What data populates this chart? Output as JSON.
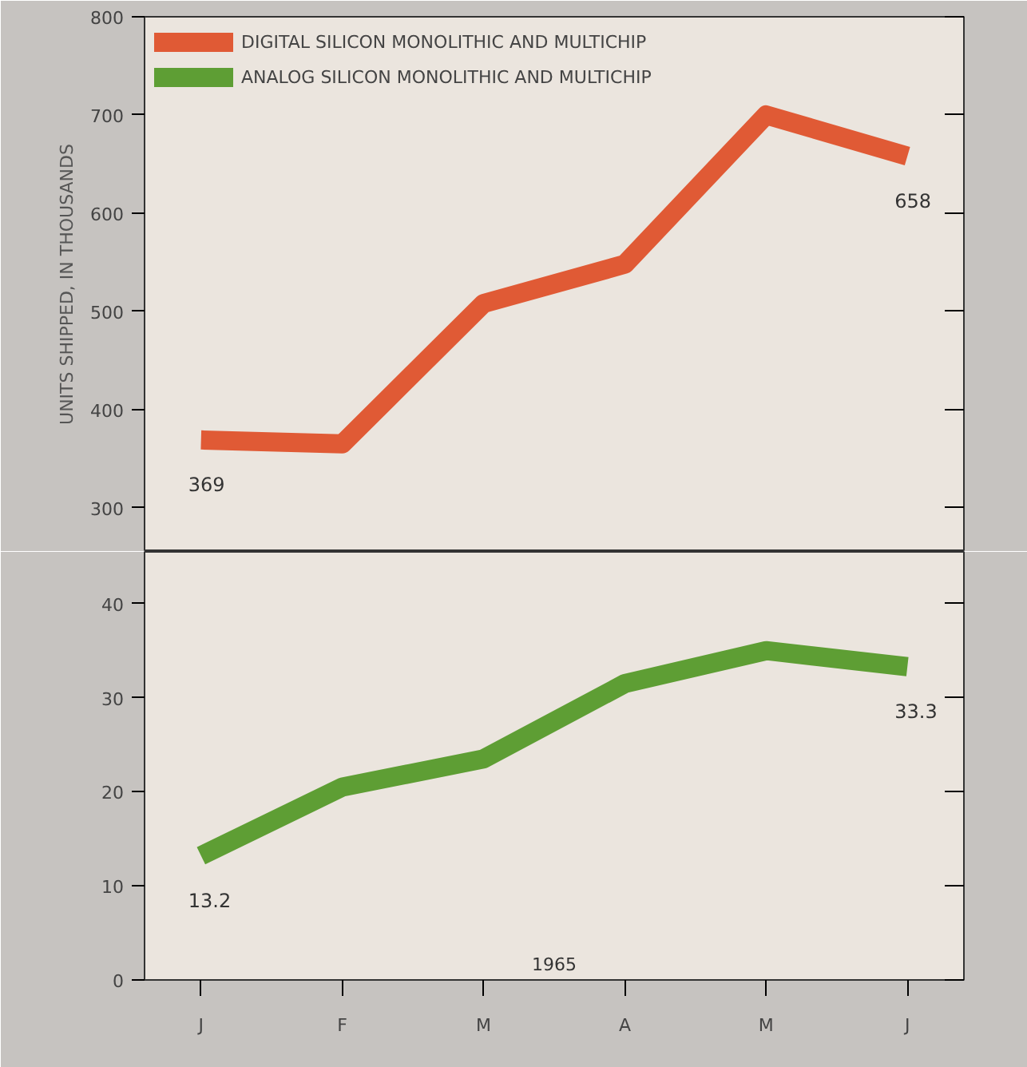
{
  "chart_data": [
    {
      "type": "line",
      "ylabel": "UNITS SHIPPED, IN THOUSANDS",
      "series": [
        {
          "name": "DIGITAL SILICON MONOLITHIC AND MULTICHIP",
          "color": "#e05a35",
          "values": [
            369,
            365,
            508,
            548,
            700,
            658
          ],
          "value_labels": [
            "369",
            null,
            null,
            null,
            null,
            "658"
          ]
        }
      ],
      "ylim": [
        255,
        800
      ],
      "yticks": [
        300,
        400,
        500,
        600,
        700,
        800
      ],
      "grid": false,
      "legend": "top left",
      "tick_labels": "y",
      "marker": "none",
      "line_style": "solid"
    },
    {
      "type": "line",
      "xlabel": "1965",
      "categories": [
        "J",
        "F",
        "M",
        "A",
        "M",
        "J"
      ],
      "series": [
        {
          "name": "ANALOG SILICON MONOLITHIC AND MULTICHIP",
          "color": "#5e9e34",
          "values": [
            13.2,
            20.5,
            23.5,
            31.5,
            35,
            33.3
          ],
          "value_labels": [
            "13.2",
            null,
            null,
            null,
            null,
            "33.3"
          ]
        }
      ],
      "ylim": [
        0,
        45.5
      ],
      "yticks": [
        0,
        10,
        20,
        30,
        40
      ],
      "grid": false,
      "legend": "top left",
      "marker": "none",
      "line_style": "solid"
    }
  ]
}
